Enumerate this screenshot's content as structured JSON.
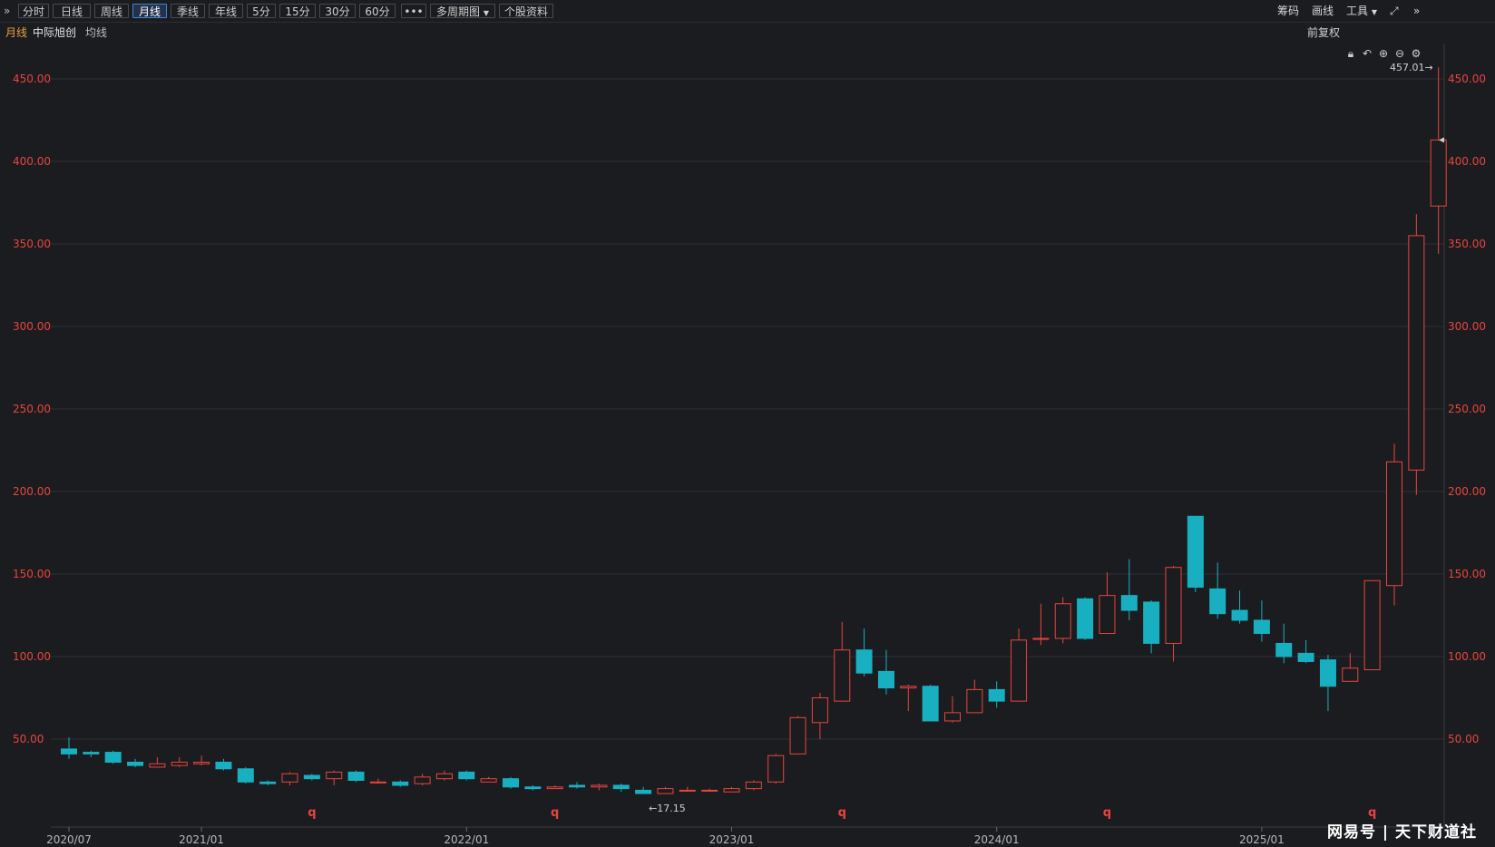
{
  "toolbar": {
    "collapse_icon": "double-chevron-right-icon",
    "periods": [
      "分时",
      "日线",
      "周线",
      "月线",
      "季线",
      "年线",
      "5分",
      "15分",
      "30分",
      "60分"
    ],
    "active_period": "月线",
    "more_label": "•••",
    "multi_period_label": "多周期图",
    "stock_info_label": "个股资料",
    "chips_label": "筹码",
    "draw_label": "画线",
    "tools_label": "工具"
  },
  "subbar": {
    "period": "月线",
    "stock_name": "中际旭创",
    "ma_label": "均线",
    "adjust_label": "前复权"
  },
  "watermark": "网易号 | 天下财道社",
  "chart_data": {
    "type": "candlestick",
    "ylim": [
      0,
      460
    ],
    "y_ticks": [
      50,
      100,
      150,
      200,
      250,
      300,
      350,
      400,
      450
    ],
    "y_tick_labels": [
      "50.00",
      "100.00",
      "150.00",
      "200.00",
      "250.00",
      "300.00",
      "350.00",
      "400.00",
      "450.00"
    ],
    "x_tick_labels": [
      {
        "index": 0,
        "label": "2020/07"
      },
      {
        "index": 6,
        "label": "2021/01"
      },
      {
        "index": 18,
        "label": "2022/01"
      },
      {
        "index": 30,
        "label": "2023/01"
      },
      {
        "index": 42,
        "label": "2024/01"
      },
      {
        "index": 54,
        "label": "2025/01"
      }
    ],
    "candles": [
      {
        "o": 44,
        "h": 51,
        "l": 38,
        "c": 41
      },
      {
        "o": 42,
        "h": 43,
        "l": 39,
        "c": 41
      },
      {
        "o": 42,
        "h": 43,
        "l": 35,
        "c": 36
      },
      {
        "o": 36,
        "h": 38,
        "l": 33,
        "c": 34
      },
      {
        "o": 33,
        "h": 39,
        "l": 33,
        "c": 35
      },
      {
        "o": 34,
        "h": 39,
        "l": 33,
        "c": 36
      },
      {
        "o": 35,
        "h": 40,
        "l": 34,
        "c": 36
      },
      {
        "o": 36,
        "h": 38,
        "l": 31,
        "c": 32
      },
      {
        "o": 32,
        "h": 33,
        "l": 23,
        "c": 24
      },
      {
        "o": 24,
        "h": 25,
        "l": 22,
        "c": 23
      },
      {
        "o": 24,
        "h": 30,
        "l": 22,
        "c": 29
      },
      {
        "o": 28,
        "h": 29,
        "l": 25,
        "c": 26
      },
      {
        "o": 26,
        "h": 31,
        "l": 22,
        "c": 30
      },
      {
        "o": 30,
        "h": 31,
        "l": 24,
        "c": 25
      },
      {
        "o": 24,
        "h": 26,
        "l": 23,
        "c": 24
      },
      {
        "o": 24,
        "h": 25,
        "l": 21,
        "c": 22
      },
      {
        "o": 23,
        "h": 29,
        "l": 22,
        "c": 27
      },
      {
        "o": 26,
        "h": 31,
        "l": 25,
        "c": 29
      },
      {
        "o": 30,
        "h": 31,
        "l": 25,
        "c": 26
      },
      {
        "o": 24,
        "h": 27,
        "l": 24,
        "c": 26
      },
      {
        "o": 26,
        "h": 27,
        "l": 20,
        "c": 21
      },
      {
        "o": 21,
        "h": 22,
        "l": 19,
        "c": 20
      },
      {
        "o": 20,
        "h": 22,
        "l": 20,
        "c": 21
      },
      {
        "o": 22,
        "h": 24,
        "l": 20,
        "c": 21
      },
      {
        "o": 21,
        "h": 23,
        "l": 19,
        "c": 22
      },
      {
        "o": 22,
        "h": 23,
        "l": 18,
        "c": 20
      },
      {
        "o": 19,
        "h": 21,
        "l": 17,
        "c": 17
      },
      {
        "o": 17,
        "h": 21,
        "l": 17,
        "c": 20
      },
      {
        "o": 19,
        "h": 21,
        "l": 18,
        "c": 19
      },
      {
        "o": 19,
        "h": 20,
        "l": 18,
        "c": 19
      },
      {
        "o": 18,
        "h": 21,
        "l": 18,
        "c": 20
      },
      {
        "o": 20,
        "h": 25,
        "l": 19,
        "c": 24
      },
      {
        "o": 24,
        "h": 41,
        "l": 23,
        "c": 40
      },
      {
        "o": 41,
        "h": 64,
        "l": 41,
        "c": 63
      },
      {
        "o": 60,
        "h": 78,
        "l": 50,
        "c": 75
      },
      {
        "o": 73,
        "h": 121,
        "l": 73,
        "c": 104
      },
      {
        "o": 104,
        "h": 117,
        "l": 88,
        "c": 90
      },
      {
        "o": 91,
        "h": 104,
        "l": 77,
        "c": 81
      },
      {
        "o": 81,
        "h": 83,
        "l": 67,
        "c": 82
      },
      {
        "o": 82,
        "h": 83,
        "l": 61,
        "c": 61
      },
      {
        "o": 61,
        "h": 76,
        "l": 60,
        "c": 66
      },
      {
        "o": 66,
        "h": 86,
        "l": 66,
        "c": 80
      },
      {
        "o": 80,
        "h": 85,
        "l": 69,
        "c": 73
      },
      {
        "o": 73,
        "h": 117,
        "l": 73,
        "c": 110
      },
      {
        "o": 111,
        "h": 132,
        "l": 107,
        "c": 111
      },
      {
        "o": 111,
        "h": 136,
        "l": 108,
        "c": 132
      },
      {
        "o": 135,
        "h": 136,
        "l": 110,
        "c": 111
      },
      {
        "o": 114,
        "h": 151,
        "l": 114,
        "c": 137
      },
      {
        "o": 137,
        "h": 159,
        "l": 122,
        "c": 128
      },
      {
        "o": 133,
        "h": 134,
        "l": 102,
        "c": 108
      },
      {
        "o": 108,
        "h": 155,
        "l": 97,
        "c": 154
      },
      {
        "o": 185,
        "h": 185,
        "l": 139,
        "c": 142
      },
      {
        "o": 141,
        "h": 157,
        "l": 123,
        "c": 126
      },
      {
        "o": 128,
        "h": 140,
        "l": 120,
        "c": 122
      },
      {
        "o": 122,
        "h": 134,
        "l": 109,
        "c": 114
      },
      {
        "o": 108,
        "h": 120,
        "l": 96,
        "c": 100
      },
      {
        "o": 102,
        "h": 110,
        "l": 96,
        "c": 97
      },
      {
        "o": 98,
        "h": 101,
        "l": 67,
        "c": 82
      },
      {
        "o": 85,
        "h": 102,
        "l": 85,
        "c": 93
      },
      {
        "o": 92,
        "h": 146,
        "l": 92,
        "c": 146
      },
      {
        "o": 143,
        "h": 229,
        "l": 131,
        "c": 218
      },
      {
        "o": 213,
        "h": 368,
        "l": 198,
        "c": 355
      },
      {
        "o": 373,
        "h": 457,
        "l": 344,
        "c": 413
      }
    ],
    "annotations": [
      {
        "label": "457.01→",
        "index": 62,
        "price": 457.01
      },
      {
        "label": "←17.15",
        "index": 26,
        "price": 17.15
      }
    ],
    "markers": [
      {
        "label": "q",
        "index": 11
      },
      {
        "label": "q",
        "index": 22
      },
      {
        "label": "q",
        "index": 35
      },
      {
        "label": "q",
        "index": 47
      },
      {
        "label": "q",
        "index": 59
      }
    ],
    "colors": {
      "up": "#e8453c",
      "down": "#18b0c0",
      "grid": "#2e2f36",
      "background": "#1b1c20"
    }
  }
}
